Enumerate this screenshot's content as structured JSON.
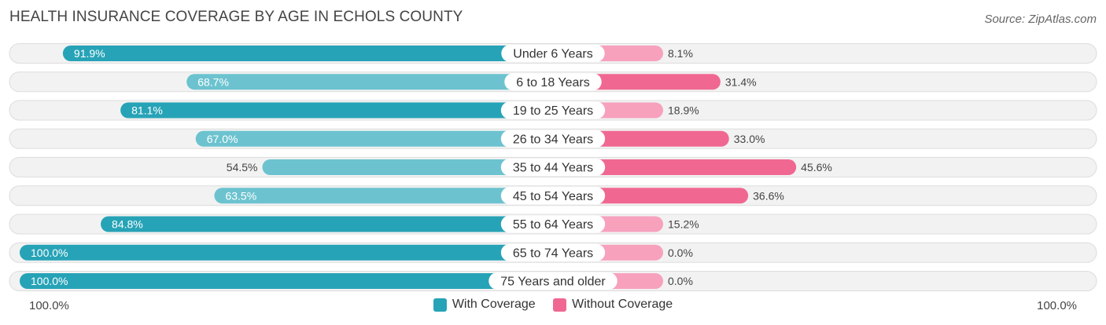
{
  "title": "HEALTH INSURANCE COVERAGE BY AGE IN ECHOLS COUNTY",
  "source": "Source: ZipAtlas.com",
  "colors": {
    "with_dark": "#27a3b7",
    "with_light": "#6cc3cf",
    "without_dark": "#f06892",
    "without_light": "#f7a1bd",
    "row_bg": "#f2f2f2",
    "row_border": "#dddddd"
  },
  "axis": {
    "left_label": "100.0%",
    "right_label": "100.0%"
  },
  "legend": [
    {
      "label": "With Coverage",
      "color": "#27a3b7"
    },
    {
      "label": "Without Coverage",
      "color": "#f06892"
    }
  ],
  "chart_data": {
    "type": "bar",
    "orientation": "diverging-horizontal",
    "title": "HEALTH INSURANCE COVERAGE BY AGE IN ECHOLS COUNTY",
    "categories": [
      "Under 6 Years",
      "6 to 18 Years",
      "19 to 25 Years",
      "26 to 34 Years",
      "35 to 44 Years",
      "45 to 54 Years",
      "55 to 64 Years",
      "65 to 74 Years",
      "75 Years and older"
    ],
    "series": [
      {
        "name": "With Coverage",
        "values": [
          91.9,
          68.7,
          81.1,
          67.0,
          54.5,
          63.5,
          84.8,
          100.0,
          100.0
        ],
        "labels": [
          "91.9%",
          "68.7%",
          "81.1%",
          "67.0%",
          "54.5%",
          "63.5%",
          "84.8%",
          "100.0%",
          "100.0%"
        ]
      },
      {
        "name": "Without Coverage",
        "values": [
          8.1,
          31.4,
          18.9,
          33.0,
          45.6,
          36.6,
          15.2,
          0.0,
          0.0
        ],
        "labels": [
          "8.1%",
          "31.4%",
          "18.9%",
          "33.0%",
          "45.6%",
          "36.6%",
          "15.2%",
          "0.0%",
          "0.0%"
        ]
      }
    ],
    "xlim": [
      0,
      100
    ],
    "legend_position": "bottom-center"
  }
}
